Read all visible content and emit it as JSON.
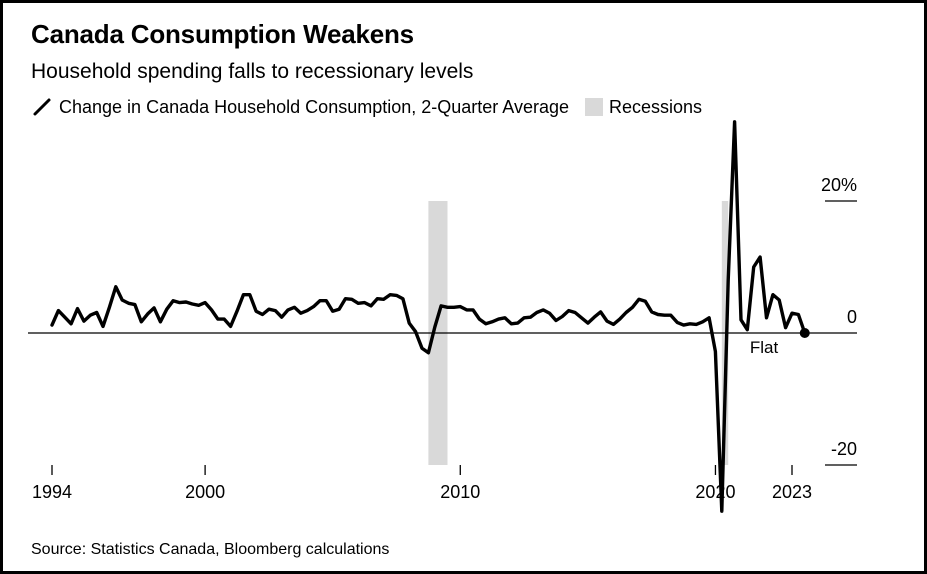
{
  "header": {
    "title": "Canada Consumption Weakens",
    "subtitle": "Household spending falls to recessionary levels"
  },
  "legend": {
    "line_label": "Change in Canada Household Consumption, 2-Quarter Average",
    "recession_label": "Recessions"
  },
  "footer": {
    "source": "Source: Statistics Canada, Bloomberg calculations"
  },
  "chart_data": {
    "type": "line",
    "title": "Canada Consumption Weakens",
    "subtitle": "Household spending falls to recessionary levels",
    "xlabel": "",
    "ylabel": "",
    "ylim": [
      -20,
      20
    ],
    "xlim": [
      1994,
      2023
    ],
    "y_ticks": [
      {
        "value": 20,
        "label": "20%"
      },
      {
        "value": 0,
        "label": "0"
      },
      {
        "value": -20,
        "label": "-20"
      }
    ],
    "x_ticks": [
      {
        "value": 1994,
        "label": "1994"
      },
      {
        "value": 2000,
        "label": "2000"
      },
      {
        "value": 2010,
        "label": "2010"
      },
      {
        "value": 2020,
        "label": "2020"
      },
      {
        "value": 2023,
        "label": "2023"
      }
    ],
    "grid": false,
    "legend_position": "top-left",
    "line_color": "#000000",
    "recession_color": "#d9d9d9",
    "recessions": [
      {
        "start": 2008.75,
        "end": 2009.5
      },
      {
        "start": 2020.25,
        "end": 2020.5
      }
    ],
    "annotations": [
      {
        "x": 2023.0,
        "y": 0.0,
        "label": "Flat"
      }
    ],
    "series": [
      {
        "name": "Change in Canada Household Consumption, 2-Quarter Average",
        "points": [
          [
            1994.0,
            1.2
          ],
          [
            1994.25,
            3.4
          ],
          [
            1994.5,
            2.4
          ],
          [
            1994.75,
            1.4
          ],
          [
            1995.0,
            3.7
          ],
          [
            1995.25,
            1.8
          ],
          [
            1995.5,
            2.7
          ],
          [
            1995.75,
            3.1
          ],
          [
            1996.0,
            1.0
          ],
          [
            1996.25,
            3.9
          ],
          [
            1996.5,
            7.0
          ],
          [
            1996.75,
            5.0
          ],
          [
            1997.0,
            4.5
          ],
          [
            1997.25,
            4.3
          ],
          [
            1997.5,
            1.7
          ],
          [
            1997.75,
            2.9
          ],
          [
            1998.0,
            3.8
          ],
          [
            1998.25,
            1.7
          ],
          [
            1998.5,
            3.6
          ],
          [
            1998.75,
            4.9
          ],
          [
            1999.0,
            4.6
          ],
          [
            1999.25,
            4.7
          ],
          [
            1999.5,
            4.4
          ],
          [
            1999.75,
            4.2
          ],
          [
            2000.0,
            4.6
          ],
          [
            2000.25,
            3.5
          ],
          [
            2000.5,
            2.1
          ],
          [
            2000.75,
            2.1
          ],
          [
            2001.0,
            1.0
          ],
          [
            2001.25,
            3.3
          ],
          [
            2001.5,
            5.8
          ],
          [
            2001.75,
            5.8
          ],
          [
            2002.0,
            3.3
          ],
          [
            2002.25,
            2.8
          ],
          [
            2002.5,
            3.6
          ],
          [
            2002.75,
            3.4
          ],
          [
            2003.0,
            2.4
          ],
          [
            2003.25,
            3.5
          ],
          [
            2003.5,
            3.9
          ],
          [
            2003.75,
            3.0
          ],
          [
            2004.0,
            3.4
          ],
          [
            2004.25,
            4.0
          ],
          [
            2004.5,
            4.9
          ],
          [
            2004.75,
            4.9
          ],
          [
            2005.0,
            3.3
          ],
          [
            2005.25,
            3.6
          ],
          [
            2005.5,
            5.2
          ],
          [
            2005.75,
            5.1
          ],
          [
            2006.0,
            4.5
          ],
          [
            2006.25,
            4.6
          ],
          [
            2006.5,
            4.1
          ],
          [
            2006.75,
            5.2
          ],
          [
            2007.0,
            5.1
          ],
          [
            2007.25,
            5.8
          ],
          [
            2007.5,
            5.7
          ],
          [
            2007.75,
            5.2
          ],
          [
            2008.0,
            1.5
          ],
          [
            2008.25,
            0.2
          ],
          [
            2008.5,
            -2.3
          ],
          [
            2008.75,
            -3.0
          ],
          [
            2009.0,
            0.9
          ],
          [
            2009.25,
            4.1
          ],
          [
            2009.5,
            3.9
          ],
          [
            2009.75,
            3.9
          ],
          [
            2010.0,
            4.0
          ],
          [
            2010.25,
            3.5
          ],
          [
            2010.5,
            3.5
          ],
          [
            2010.75,
            2.1
          ],
          [
            2011.0,
            1.4
          ],
          [
            2011.25,
            1.7
          ],
          [
            2011.5,
            2.1
          ],
          [
            2011.75,
            2.3
          ],
          [
            2012.0,
            1.4
          ],
          [
            2012.25,
            1.5
          ],
          [
            2012.5,
            2.3
          ],
          [
            2012.75,
            2.4
          ],
          [
            2013.0,
            3.1
          ],
          [
            2013.25,
            3.5
          ],
          [
            2013.5,
            3.0
          ],
          [
            2013.75,
            1.9
          ],
          [
            2014.0,
            2.5
          ],
          [
            2014.25,
            3.4
          ],
          [
            2014.5,
            3.1
          ],
          [
            2014.75,
            2.3
          ],
          [
            2015.0,
            1.5
          ],
          [
            2015.25,
            2.4
          ],
          [
            2015.5,
            3.2
          ],
          [
            2015.75,
            1.8
          ],
          [
            2016.0,
            1.3
          ],
          [
            2016.25,
            2.1
          ],
          [
            2016.5,
            3.1
          ],
          [
            2016.75,
            3.9
          ],
          [
            2017.0,
            5.1
          ],
          [
            2017.25,
            4.8
          ],
          [
            2017.5,
            3.2
          ],
          [
            2017.75,
            2.8
          ],
          [
            2018.0,
            2.7
          ],
          [
            2018.25,
            2.7
          ],
          [
            2018.5,
            1.6
          ],
          [
            2018.75,
            1.2
          ],
          [
            2019.0,
            1.4
          ],
          [
            2019.25,
            1.3
          ],
          [
            2019.5,
            1.7
          ],
          [
            2019.75,
            2.3
          ],
          [
            2020.0,
            -2.8
          ],
          [
            2020.25,
            -27.0
          ],
          [
            2020.5,
            8.0
          ],
          [
            2020.75,
            32.0
          ],
          [
            2021.0,
            2.0
          ],
          [
            2021.25,
            0.5
          ],
          [
            2021.5,
            10.0
          ],
          [
            2021.75,
            11.5
          ],
          [
            2022.0,
            2.3
          ],
          [
            2022.25,
            5.8
          ],
          [
            2022.5,
            5.0
          ],
          [
            2022.75,
            0.8
          ],
          [
            2023.0,
            3.0
          ],
          [
            2023.25,
            2.8
          ],
          [
            2023.5,
            0.0
          ]
        ]
      }
    ]
  }
}
